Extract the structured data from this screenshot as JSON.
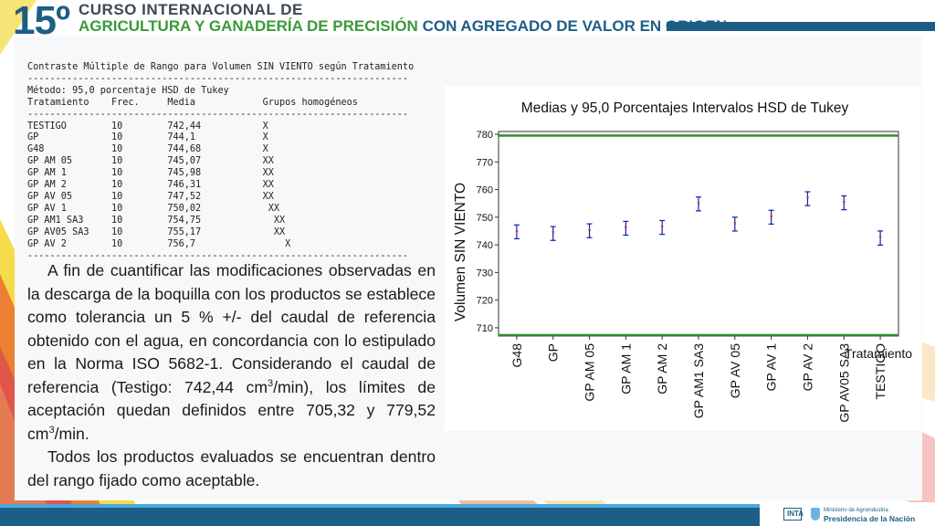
{
  "header": {
    "number": "15º",
    "line1": "CURSO INTERNACIONAL DE",
    "line2_green": "AGRICULTURA Y GANADERÍA DE PRECISIÓN",
    "line2_blue": "CON AGREGADO DE VALOR EN ORIGEN"
  },
  "stats_text": "Contraste Múltiple de Rango para Volumen SIN VIENTO según Tratamiento\n--------------------------------------------------------------------\nMétodo: 95,0 porcentaje HSD de Tukey\nTratamiento    Frec.     Media            Grupos homogéneos\n--------------------------------------------------------------------\nTESTIGO        10        742,44           X\nGP             10        744,1            X\nG48            10        744,68           X\nGP AM 05       10        745,07           XX\nGP AM 1        10        745,98           XX\nGP AM 2        10        746,31           XX\nGP AV 05       10        747,52           XX\nGP AV 1        10        750,02            XX\nGP AM1 SA3     10        754,75             XX\nGP AV05 SA3    10        755,17             XX\nGP AV 2        10        756,7                X\n--------------------------------------------------------------------",
  "paragraph1": {
    "text": "A fin de cuantificar las modificaciones observadas en la descarga de la boquilla con los productos se establece como tolerancia un 5 % +/- del caudal de referencia obtenido con el agua, en concordancia con lo estipulado en la Norma ISO 5682-1. Considerando el caudal de referencia (Testigo: 742,44 cm",
    "sup1": "3",
    "mid": "/min), los límites de aceptación quedan definidos entre 705,32 y 779,52 cm",
    "sup2": "3",
    "end": "/min."
  },
  "paragraph2": "Todos los productos evaluados se encuentran dentro del rango fijado como aceptable.",
  "footer": {
    "inta": "INTA",
    "ministerio": "Ministerio de Agroindustria",
    "presidencia": "Presidencia de la Nación"
  },
  "colors": {
    "brand_blue": "#1d5e86",
    "brand_green": "#3a9a3a",
    "point_color": "#1a1aa8",
    "limit_line": "#2e8b2e"
  },
  "chart_data": {
    "type": "scatter",
    "title": "Medias y 95,0 Porcentajes Intervalos HSD de Tukey",
    "xlabel": "Tratamiento",
    "ylabel": "Volumen SIN VIENTO",
    "ylim": [
      707,
      781
    ],
    "yticks": [
      710,
      720,
      730,
      740,
      750,
      760,
      770,
      780
    ],
    "categories": [
      "G48",
      "GP",
      "GP AM 05",
      "GP AM 1",
      "GP AM 2",
      "GP AM1 SA3",
      "GP AV 05",
      "GP AV 1",
      "GP AV 2",
      "GP AV05 SA3",
      "TESTIGO"
    ],
    "series": [
      {
        "means": [
          744.68,
          744.1,
          745.07,
          745.98,
          746.31,
          754.75,
          747.52,
          750.02,
          756.7,
          755.17,
          742.44
        ],
        "lower": [
          742.2,
          741.6,
          742.6,
          743.5,
          743.8,
          752.3,
          745.0,
          747.5,
          754.2,
          752.7,
          739.9
        ],
        "upper": [
          747.2,
          746.6,
          747.6,
          748.5,
          748.8,
          757.3,
          750.0,
          752.5,
          759.2,
          757.7,
          745.0
        ]
      }
    ],
    "reference_lines": [
      779.52,
      705.32
    ],
    "grid": false
  }
}
